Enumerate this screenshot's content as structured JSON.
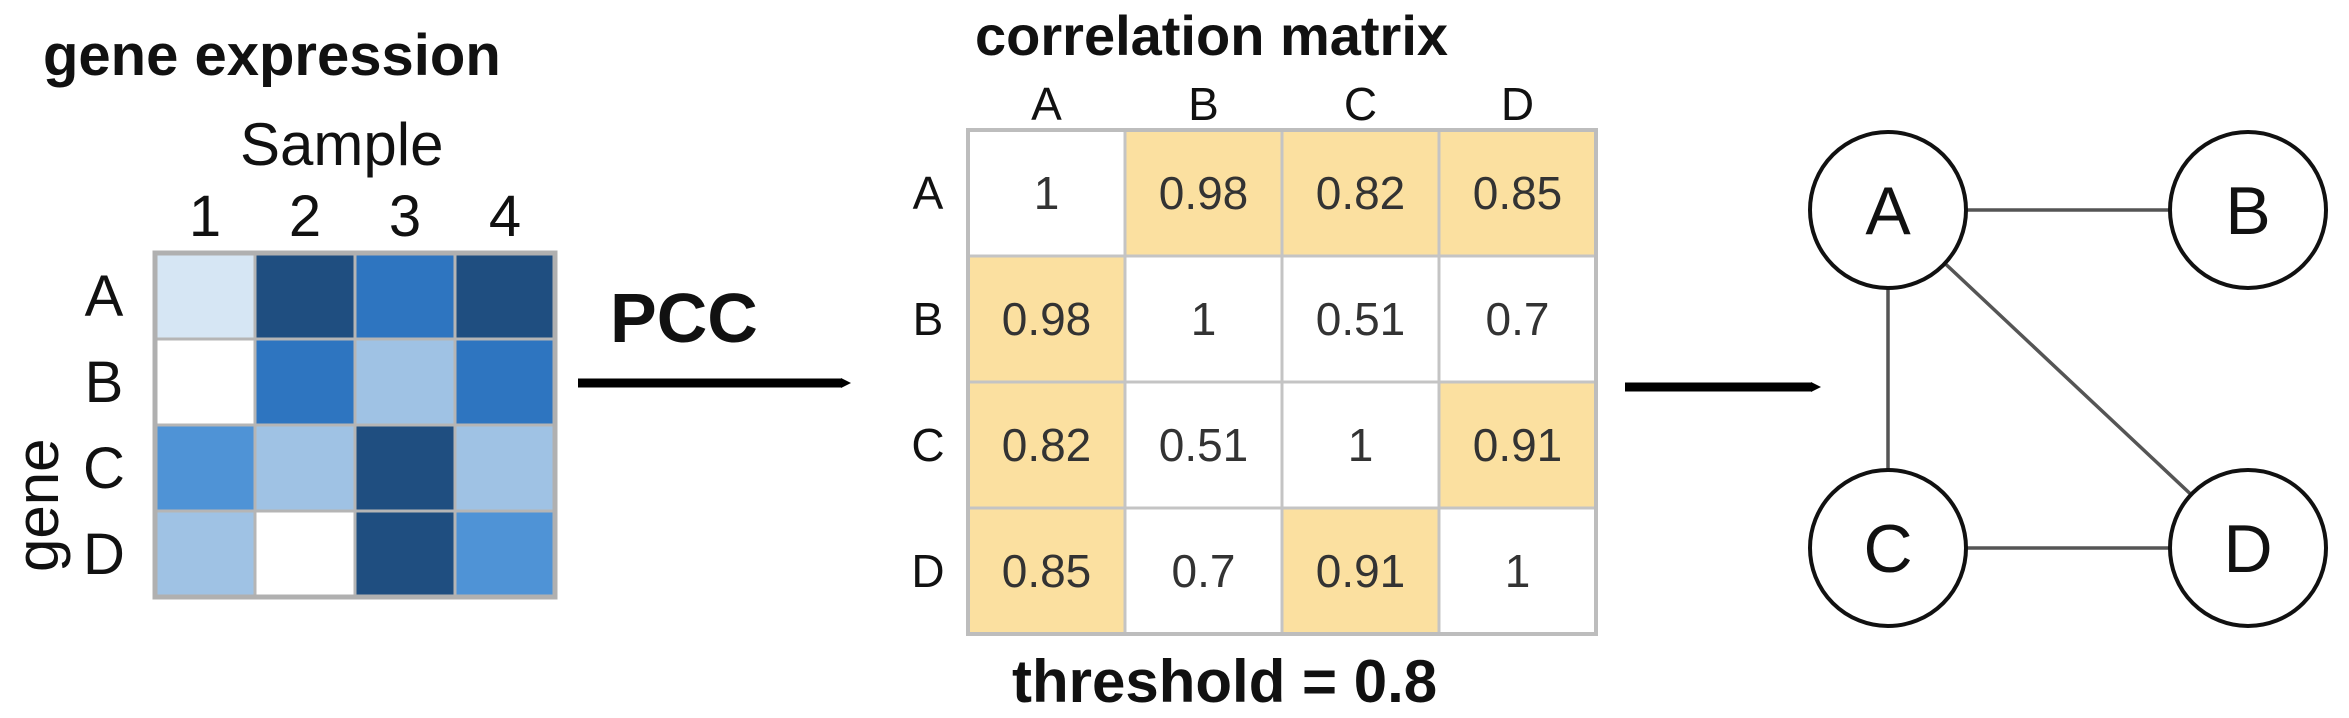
{
  "gene_expression": {
    "title": "gene expression",
    "sample_label": "Sample",
    "gene_label": "gene",
    "columns": [
      "1",
      "2",
      "3",
      "4"
    ],
    "rows": [
      "A",
      "B",
      "C",
      "D"
    ],
    "cell_colors": [
      [
        "#d6e6f4",
        "#1f4e80",
        "#2e75c0",
        "#1f4e80"
      ],
      [
        "#ffffff",
        "#2e75c0",
        "#9fc2e4",
        "#2e75c0"
      ],
      [
        "#4f93d6",
        "#9fc2e4",
        "#1f4e80",
        "#9fc2e4"
      ],
      [
        "#9fc2e4",
        "#ffffff",
        "#1f4e80",
        "#4f93d6"
      ]
    ]
  },
  "arrow_label": "PCC",
  "correlation_matrix": {
    "title": "correlation matrix",
    "columns": [
      "A",
      "B",
      "C",
      "D"
    ],
    "rows": [
      "A",
      "B",
      "C",
      "D"
    ],
    "values": [
      [
        "1",
        "0.98",
        "0.82",
        "0.85"
      ],
      [
        "0.98",
        "1",
        "0.51",
        "0.7"
      ],
      [
        "0.82",
        "0.51",
        "1",
        "0.91"
      ],
      [
        "0.85",
        "0.7",
        "0.91",
        "1"
      ]
    ],
    "highlight_color": "#fbe0a0",
    "threshold_label": "threshold = 0.8"
  },
  "network": {
    "nodes": [
      {
        "id": "A",
        "label": "A"
      },
      {
        "id": "B",
        "label": "B"
      },
      {
        "id": "C",
        "label": "C"
      },
      {
        "id": "D",
        "label": "D"
      }
    ],
    "edges": [
      [
        "A",
        "B"
      ],
      [
        "A",
        "C"
      ],
      [
        "A",
        "D"
      ],
      [
        "C",
        "D"
      ]
    ]
  }
}
